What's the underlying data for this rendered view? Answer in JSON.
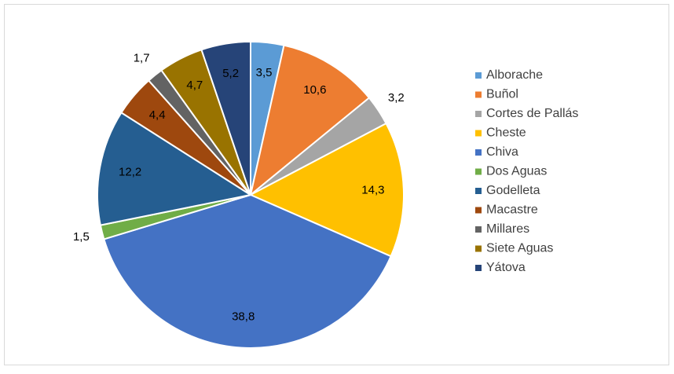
{
  "chart_data": {
    "type": "pie",
    "categories": [
      "Alborache",
      "Buñol",
      "Cortes de Pallás",
      "Cheste",
      "Chiva",
      "Dos Aguas",
      "Godelleta",
      "Macastre",
      "Millares",
      "Siete Aguas",
      "Yátova"
    ],
    "values": [
      3.5,
      10.6,
      3.2,
      14.3,
      38.8,
      1.5,
      12.2,
      4.4,
      1.7,
      4.7,
      5.2
    ],
    "value_labels": [
      "3,5",
      "10,6",
      "3,2",
      "14,3",
      "38,8",
      "1,5",
      "12,2",
      "4,4",
      "1,7",
      "4,7",
      "5,2"
    ],
    "colors": [
      "#5b9bd5",
      "#ed7d31",
      "#a5a5a5",
      "#ffc000",
      "#4472c4",
      "#70ad47",
      "#255e91",
      "#9e480e",
      "#636363",
      "#997300",
      "#264478"
    ],
    "legend": "right"
  }
}
